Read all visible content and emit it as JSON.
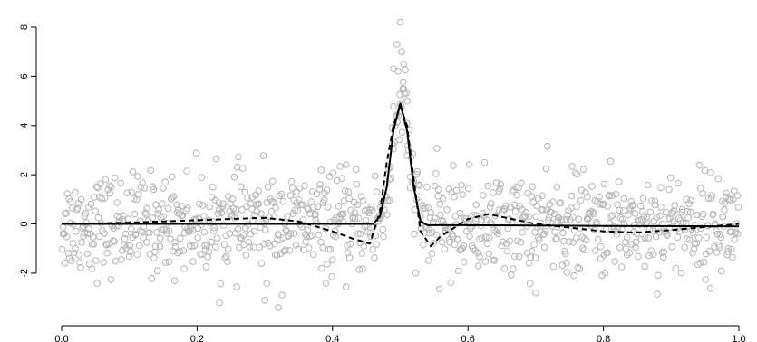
{
  "chart_data": {
    "type": "scatter",
    "title": "",
    "xlabel": "",
    "ylabel": "",
    "xlim": [
      0.0,
      1.0
    ],
    "ylim": [
      -3.5,
      8.5
    ],
    "x_ticks": [
      0.0,
      0.2,
      0.4,
      0.6,
      0.8,
      1.0
    ],
    "x_tick_labels": [
      "0.0",
      "0.2",
      "0.4",
      "0.6",
      "0.8",
      "1.0"
    ],
    "y_ticks": [
      -2,
      0,
      2,
      4,
      6,
      8
    ],
    "y_tick_labels": [
      "-2",
      "0",
      "2",
      "4",
      "6",
      "8"
    ],
    "grid": false,
    "legend": "none",
    "colors": {
      "points": "#b5b5b5",
      "lines": "#000000",
      "axis": "#000000"
    },
    "scatter": {
      "n": 1000,
      "x_range": [
        0.0,
        1.0
      ],
      "noise_sd": 1.0,
      "peak_center": 0.5,
      "peak_height": 5.0,
      "peak_width": 0.012,
      "x": [
        0.49,
        0.495,
        0.5,
        0.502,
        0.505,
        0.51,
        0.5,
        0.3,
        0.32,
        0.7
      ],
      "y": [
        6.3,
        7.3,
        8.2,
        7.0,
        6.5,
        5.0,
        4.6,
        -3.1,
        -3.4,
        -2.8
      ]
    },
    "series": [
      {
        "style": "solid",
        "x": [
          0.0,
          0.2,
          0.4,
          0.46,
          0.47,
          0.48,
          0.49,
          0.5,
          0.51,
          0.52,
          0.53,
          0.54,
          0.6,
          0.8,
          1.0
        ],
        "y": [
          0.0,
          0.0,
          0.0,
          0.0,
          0.3,
          1.5,
          3.8,
          4.9,
          3.8,
          1.5,
          0.1,
          -0.05,
          -0.05,
          -0.08,
          -0.1
        ]
      },
      {
        "style": "dashed",
        "x": [
          0.0,
          0.1,
          0.2,
          0.3,
          0.35,
          0.4,
          0.43,
          0.455,
          0.47,
          0.48,
          0.49,
          0.5,
          0.51,
          0.52,
          0.53,
          0.545,
          0.56,
          0.6,
          0.63,
          0.7,
          0.8,
          0.85,
          0.9,
          1.0
        ],
        "y": [
          0.0,
          0.05,
          0.15,
          0.25,
          0.1,
          -0.3,
          -0.6,
          -0.8,
          0.5,
          2.5,
          4.0,
          4.8,
          4.0,
          1.8,
          -0.3,
          -0.9,
          -0.5,
          0.2,
          0.4,
          0.0,
          -0.3,
          -0.35,
          -0.25,
          0.0
        ]
      }
    ]
  }
}
